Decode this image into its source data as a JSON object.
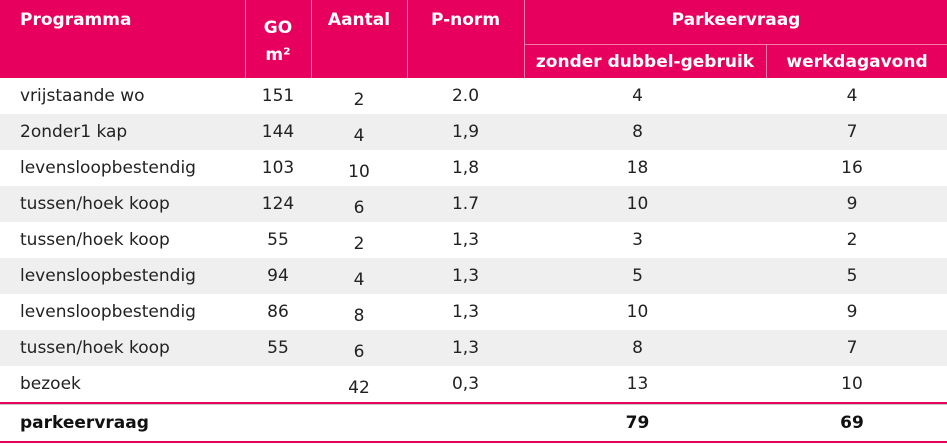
{
  "header": {
    "programma": "Programma",
    "go": "GO",
    "go_unit": "m²",
    "aantal": "Aantal",
    "pnorm": "P-norm",
    "parkeervraag": "Parkeervraag",
    "zonder": "zonder dubbel-gebruik",
    "werkdagavond": "werkdagavond"
  },
  "rows": [
    {
      "programma": "vrijstaande wo",
      "go": "151",
      "aantal": "2",
      "pnorm": "2.0",
      "zonder": "4",
      "werkdag": "4"
    },
    {
      "programma": "2onder1 kap",
      "go": "144",
      "aantal": "4",
      "pnorm": "1,9",
      "zonder": "8",
      "werkdag": "7"
    },
    {
      "programma": "levensloopbestendig",
      "go": "103",
      "aantal": "10",
      "pnorm": "1,8",
      "zonder": "18",
      "werkdag": "16"
    },
    {
      "programma": "tussen/hoek koop",
      "go": "124",
      "aantal": "6",
      "pnorm": "1.7",
      "zonder": "10",
      "werkdag": "9"
    },
    {
      "programma": "tussen/hoek koop",
      "go": "55",
      "aantal": "2",
      "pnorm": "1,3",
      "zonder": "3",
      "werkdag": "2"
    },
    {
      "programma": "levensloopbestendig",
      "go": "94",
      "aantal": "4",
      "pnorm": "1,3",
      "zonder": "5",
      "werkdag": "5"
    },
    {
      "programma": "levensloopbestendig",
      "go": "86",
      "aantal": "8",
      "pnorm": "1,3",
      "zonder": "10",
      "werkdag": "9"
    },
    {
      "programma": "tussen/hoek koop",
      "go": "55",
      "aantal": "6",
      "pnorm": "1,3",
      "zonder": "8",
      "werkdag": "7"
    },
    {
      "programma": "bezoek",
      "go": "",
      "aantal": "42",
      "pnorm": "0,3",
      "zonder": "13",
      "werkdag": "10"
    }
  ],
  "total": {
    "label": "parkeervraag",
    "zonder": "79",
    "werkdag": "69"
  },
  "colors": {
    "header_bg": "#e8005f",
    "row_shade": "#efefef"
  }
}
